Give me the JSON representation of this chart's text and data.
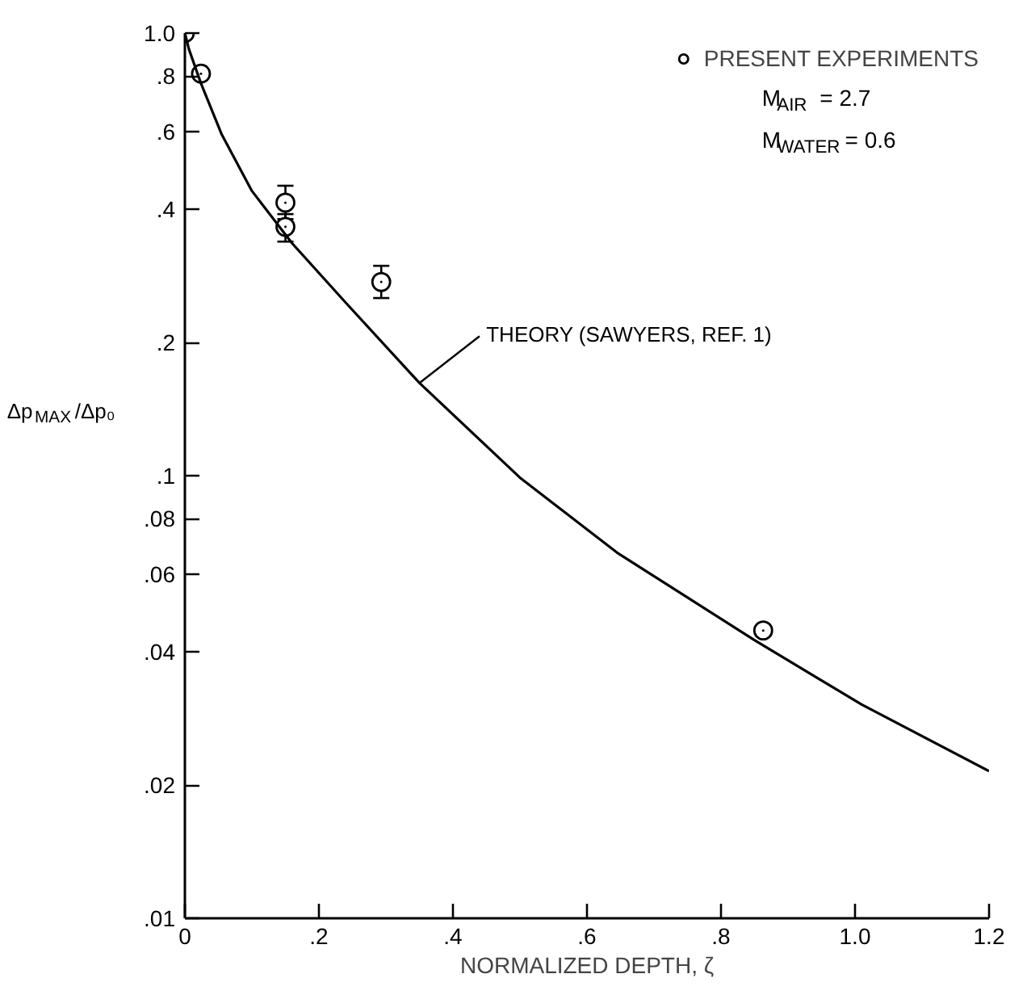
{
  "chart_data": {
    "type": "scatter",
    "xlabel": "NORMALIZED DEPTH, ζ",
    "ylabel": "Δp$_{MAX}$/Δp₀",
    "xlim": [
      0,
      1.2
    ],
    "ylim": [
      0.01,
      1.0
    ],
    "log": "y",
    "legend": "top right",
    "line_style": "solid",
    "xticks": [
      0,
      {
        "value": 0.2,
        "label": ".2"
      },
      {
        "value": 0.4,
        "label": ".4"
      },
      {
        "value": 0.6,
        "label": ".6"
      },
      {
        "value": 0.8,
        "label": ".8"
      },
      {
        "value": 1.0,
        "label": "1.0"
      },
      {
        "value": 1.2,
        "label": "1.2"
      }
    ],
    "yticks": [
      {
        "value": 0.01,
        "label": ".01"
      },
      {
        "value": 0.02,
        "label": ".02"
      },
      {
        "value": 0.04,
        "label": ".04"
      },
      {
        "value": 0.06,
        "label": ".06"
      },
      {
        "value": 0.08,
        "label": ".08"
      },
      {
        "value": 0.1,
        "label": ".1"
      },
      {
        "value": 0.2,
        "label": ".2"
      },
      {
        "value": 0.4,
        "label": ".4"
      },
      {
        "value": 0.6,
        "label": ".6"
      },
      {
        "value": 0.8,
        "label": ".8"
      },
      {
        "value": 1.0,
        "label": "1.0"
      }
    ],
    "series": [
      {
        "name": "PRESENT EXPERIMENTS",
        "marker": "circle",
        "color": "#000000",
        "x": [
          0,
          0.024,
          0.15,
          0.15,
          0.293,
          0.863
        ],
        "values": [
          1.0,
          0.81,
          0.414,
          0.365,
          0.274,
          0.0447
        ],
        "errors": [
          null,
          null,
          [
            0.38,
            0.452
          ],
          [
            0.338,
            0.39
          ],
          [
            0.252,
            0.298
          ],
          null
        ]
      },
      {
        "type": "line",
        "color": "#000000",
        "x": [
          0,
          0.006,
          0.024,
          0.055,
          0.1,
          0.16,
          0.24,
          0.35,
          0.5,
          0.645,
          0.85,
          1.01,
          1.2
        ],
        "values": [
          1.0,
          0.92,
          0.77,
          0.59,
          0.44,
          0.335,
          0.246,
          0.162,
          0.099,
          0.067,
          0.0425,
          0.0304,
          0.0215
        ]
      }
    ],
    "annotations": [
      {
        "text": "THEORY (SAWYERS, REF. 1)",
        "x": 0.35,
        "y": 0.162
      },
      "M$_{AIR}$ = 2.7",
      "M$_{WATER}$ = 0.6"
    ]
  }
}
